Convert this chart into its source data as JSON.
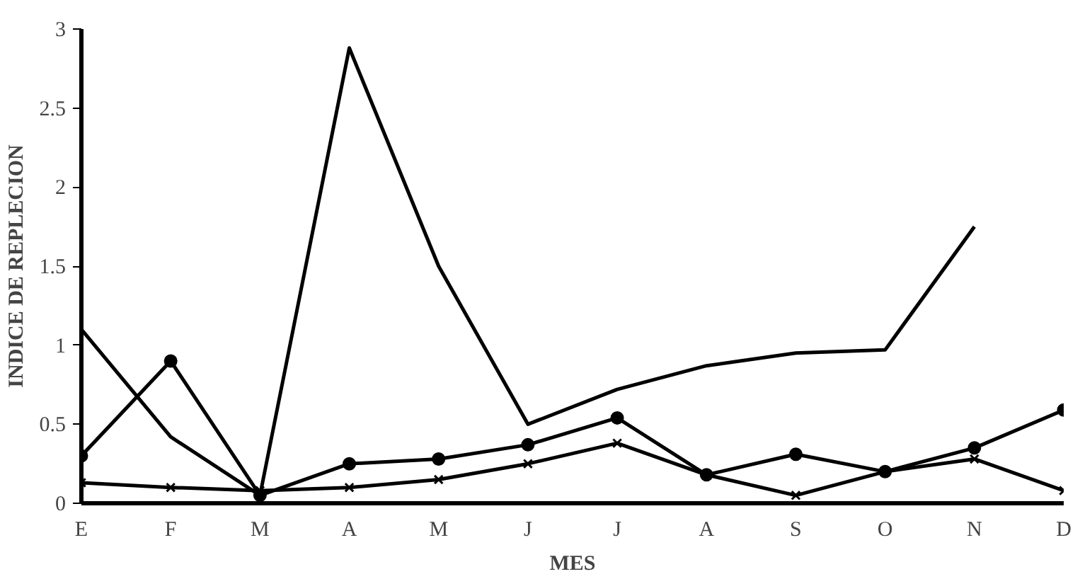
{
  "chart_data": {
    "type": "line",
    "xlabel": "MES",
    "ylabel": "INDICE DE REPLECION",
    "categories": [
      "E",
      "F",
      "M",
      "A",
      "M",
      "J",
      "J",
      "A",
      "S",
      "O",
      "N",
      "D"
    ],
    "ylim": [
      0,
      3
    ],
    "yticks": [
      0,
      0.5,
      1,
      1.5,
      2,
      2.5,
      3
    ],
    "grid": false,
    "line_style": "solid",
    "series": [
      {
        "color": "#000000",
        "marker": "none",
        "values": [
          1.1,
          0.42,
          0.05,
          2.88,
          1.5,
          0.5,
          0.72,
          0.87,
          0.95,
          0.97,
          1.75,
          null
        ]
      },
      {
        "color": "#000000",
        "marker": "circle",
        "values": [
          0.3,
          0.9,
          0.05,
          0.25,
          0.28,
          0.37,
          0.54,
          0.18,
          0.31,
          0.2,
          0.35,
          0.59
        ]
      },
      {
        "color": "#000000",
        "marker": "cross",
        "values": [
          0.13,
          0.1,
          0.08,
          0.1,
          0.15,
          0.25,
          0.38,
          0.18,
          0.05,
          0.2,
          0.28,
          0.08
        ]
      }
    ]
  }
}
